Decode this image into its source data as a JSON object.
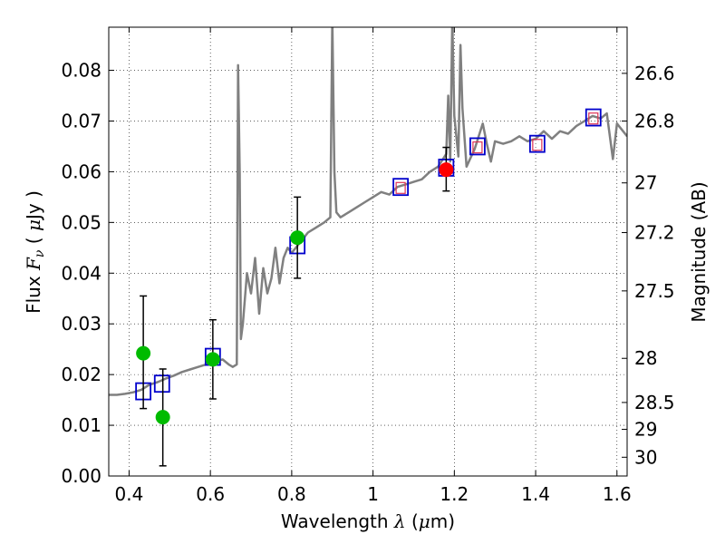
{
  "chart_data": {
    "type": "scatter",
    "title": "",
    "xlabel": {
      "prefix": "Wavelength  ",
      "symbol": "λ",
      "suffix": " (",
      "mu": "μ",
      "unit": "m)"
    },
    "ylabel": {
      "prefix": "Flux  ",
      "symbol": "F",
      "subscript": "ν",
      "open": "  ( ",
      "mu": "μ",
      "unit": "Jy )"
    },
    "y2label": "Magnitude (AB)",
    "xlim": [
      0.35,
      1.625
    ],
    "ylim": [
      0.0,
      0.0885
    ],
    "grid": true,
    "x_ticks": [
      0.4,
      0.6,
      0.8,
      1.0,
      1.2,
      1.4,
      1.6
    ],
    "x_tick_labels": [
      "0.4",
      "0.6",
      "0.8",
      "1",
      "1.2",
      "1.4",
      "1.6"
    ],
    "y_ticks": [
      0.0,
      0.01,
      0.02,
      0.03,
      0.04,
      0.05,
      0.06,
      0.07,
      0.08
    ],
    "y_tick_labels": [
      "0.00",
      "0.01",
      "0.02",
      "0.03",
      "0.04",
      "0.05",
      "0.06",
      "0.07",
      "0.08"
    ],
    "y2_ticks": [
      {
        "label": "26.6",
        "flux": 0.0794
      },
      {
        "label": "26.8",
        "flux": 0.07
      },
      {
        "label": "27",
        "flux": 0.0578
      },
      {
        "label": "27.2",
        "flux": 0.048
      },
      {
        "label": "27.5",
        "flux": 0.0365
      },
      {
        "label": "28",
        "flux": 0.0232
      },
      {
        "label": "28.5",
        "flux": 0.0145
      },
      {
        "label": "29",
        "flux": 0.0092
      },
      {
        "label": "30",
        "flux": 0.0037
      }
    ],
    "colors": {
      "model": "#808080",
      "green": "#00bb00",
      "red": "#ff0000",
      "blue": "#0000cc",
      "pink": "#dd3355",
      "error": "#000000"
    },
    "series": [
      {
        "name": "model spectrum",
        "type": "line",
        "x": [
          0.35,
          0.37,
          0.39,
          0.41,
          0.43,
          0.45,
          0.47,
          0.49,
          0.51,
          0.53,
          0.55,
          0.57,
          0.59,
          0.61,
          0.63,
          0.645,
          0.655,
          0.665,
          0.668,
          0.672,
          0.675,
          0.68,
          0.69,
          0.7,
          0.71,
          0.72,
          0.73,
          0.74,
          0.75,
          0.76,
          0.77,
          0.78,
          0.79,
          0.8,
          0.82,
          0.84,
          0.86,
          0.88,
          0.895,
          0.9,
          0.905,
          0.91,
          0.92,
          0.94,
          0.96,
          0.98,
          1.0,
          1.02,
          1.04,
          1.06,
          1.08,
          1.1,
          1.12,
          1.14,
          1.16,
          1.18,
          1.185,
          1.19,
          1.195,
          1.2,
          1.21,
          1.215,
          1.22,
          1.23,
          1.25,
          1.27,
          1.28,
          1.29,
          1.3,
          1.32,
          1.34,
          1.36,
          1.38,
          1.4,
          1.42,
          1.44,
          1.46,
          1.48,
          1.5,
          1.52,
          1.54,
          1.56,
          1.575,
          1.59,
          1.6,
          1.625
        ],
        "y": [
          0.016,
          0.016,
          0.0162,
          0.0165,
          0.017,
          0.018,
          0.0185,
          0.0192,
          0.0198,
          0.0205,
          0.021,
          0.0215,
          0.022,
          0.0225,
          0.023,
          0.022,
          0.0215,
          0.022,
          0.081,
          0.06,
          0.027,
          0.03,
          0.04,
          0.036,
          0.043,
          0.032,
          0.041,
          0.036,
          0.039,
          0.045,
          0.038,
          0.043,
          0.045,
          0.044,
          0.046,
          0.048,
          0.049,
          0.05,
          0.051,
          0.09,
          0.06,
          0.052,
          0.051,
          0.052,
          0.053,
          0.054,
          0.055,
          0.056,
          0.0555,
          0.057,
          0.0575,
          0.058,
          0.0585,
          0.06,
          0.061,
          0.0635,
          0.075,
          0.062,
          0.09,
          0.071,
          0.063,
          0.085,
          0.0725,
          0.061,
          0.0645,
          0.0695,
          0.0655,
          0.062,
          0.066,
          0.0655,
          0.066,
          0.067,
          0.066,
          0.0665,
          0.068,
          0.0665,
          0.068,
          0.0675,
          0.069,
          0.07,
          0.071,
          0.0705,
          0.0715,
          0.0625,
          0.0695,
          0.067
        ]
      },
      {
        "name": "green photometry",
        "type": "scatter",
        "points": [
          {
            "x": 0.435,
            "y": 0.0242,
            "yerr_low": 0.0133,
            "yerr_high": 0.0355
          },
          {
            "x": 0.483,
            "y": 0.0116,
            "yerr_low": 0.002,
            "yerr_high": 0.0211
          },
          {
            "x": 0.606,
            "y": 0.023,
            "yerr_low": 0.0152,
            "yerr_high": 0.0308
          },
          {
            "x": 0.814,
            "y": 0.047,
            "yerr_low": 0.039,
            "yerr_high": 0.055
          }
        ]
      },
      {
        "name": "red photometry",
        "type": "scatter",
        "points": [
          {
            "x": 1.18,
            "y": 0.0604,
            "yerr_low": 0.0562,
            "yerr_high": 0.0648
          }
        ]
      },
      {
        "name": "model photometry (blue squares)",
        "type": "scatter",
        "points": [
          {
            "x": 0.435,
            "y": 0.0167
          },
          {
            "x": 0.481,
            "y": 0.0182
          },
          {
            "x": 0.606,
            "y": 0.0235
          },
          {
            "x": 0.814,
            "y": 0.0455
          },
          {
            "x": 1.068,
            "y": 0.057
          },
          {
            "x": 1.18,
            "y": 0.0608
          },
          {
            "x": 1.257,
            "y": 0.065
          },
          {
            "x": 1.404,
            "y": 0.0655
          },
          {
            "x": 1.542,
            "y": 0.0707
          }
        ]
      },
      {
        "name": "pink squares",
        "type": "scatter",
        "points": [
          {
            "x": 1.068,
            "y": 0.0568
          },
          {
            "x": 1.257,
            "y": 0.0648
          },
          {
            "x": 1.404,
            "y": 0.0653
          },
          {
            "x": 1.542,
            "y": 0.0705
          }
        ]
      }
    ]
  }
}
